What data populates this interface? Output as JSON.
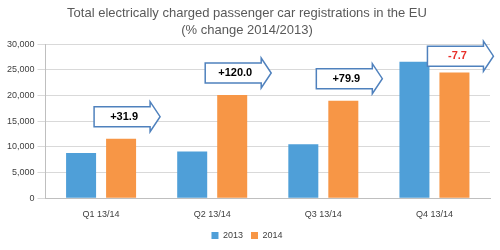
{
  "chart_data": {
    "type": "bar",
    "title": "Total electrically charged passenger car registrations in the EU",
    "subtitle": "(% change 2014/2013)",
    "categories": [
      "Q1 13/14",
      "Q2 13/14",
      "Q3 13/14",
      "Q4 13/14"
    ],
    "series": [
      {
        "name": "2013",
        "color": "#4f9fd8",
        "values": [
          8800,
          9100,
          10500,
          26600
        ]
      },
      {
        "name": "2014",
        "color": "#f79646",
        "values": [
          11600,
          20100,
          19000,
          24500
        ]
      }
    ],
    "annotations": [
      {
        "text": "+31.9",
        "color": "#000000"
      },
      {
        "text": "+120.0",
        "color": "#000000"
      },
      {
        "text": "+79.9",
        "color": "#000000"
      },
      {
        "text": "-7.7",
        "color": "#e8302a"
      }
    ],
    "ylim": [
      0,
      30000
    ],
    "yticks": [
      0,
      {
        "value": 5000,
        "label": "5,000"
      },
      {
        "value": 10000,
        "label": "10,000"
      },
      {
        "value": 15000,
        "label": "15,000"
      },
      {
        "value": 20000,
        "label": "20,000"
      },
      {
        "value": 25000,
        "label": "25,000"
      },
      {
        "value": 30000,
        "label": "30,000"
      }
    ],
    "grid": true,
    "legend": "bottom"
  }
}
